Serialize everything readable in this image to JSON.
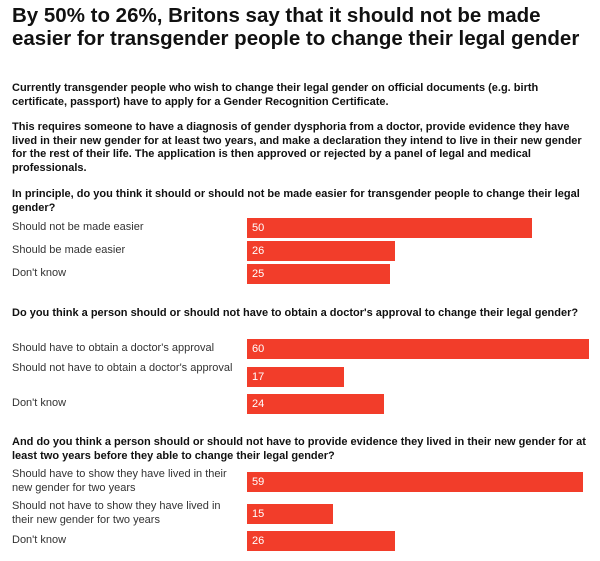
{
  "title": "By 50% to 26%, Britons say that it should not be made easier for transgender people to change their legal gender",
  "intro": [
    "Currently transgender people who wish to change their legal gender on official documents (e.g. birth certificate, passport) have to apply for a Gender Recognition Certificate.",
    "This requires someone to have a diagnosis of gender dysphoria from a doctor, provide evidence they have lived in their new gender for at least two years, and make a declaration they intend to live in their new gender for the rest of their life. The application is then approved or rejected by a panel of legal and medical professionals."
  ],
  "colors": {
    "bar": "#f23d2a",
    "text": "#111111",
    "label": "#333333"
  },
  "chart_data": [
    {
      "type": "bar",
      "orientation": "horizontal",
      "title": "In principle, do you think it should or should not be made easier for transgender people to change their legal gender?",
      "categories": [
        "Should not be made easier",
        "Should be made easier",
        "Don't know"
      ],
      "values": [
        50,
        26,
        25
      ]
    },
    {
      "type": "bar",
      "orientation": "horizontal",
      "title": "Do you think a person should or should not have to obtain a doctor's approval to change their legal gender?",
      "categories": [
        "Should have to obtain a doctor's approval",
        "Should not have to obtain a doctor's approval",
        "Don't know"
      ],
      "values": [
        60,
        17,
        24
      ]
    },
    {
      "type": "bar",
      "orientation": "horizontal",
      "title": "And do you think a person should or should not have to provide evidence they lived in their new gender for at least two years before they able to change their legal gender?",
      "categories": [
        "Should have to show they have lived in their new gender for two years",
        "Should not have to show they have lived in their new gender for two years",
        "Don't know"
      ],
      "values": [
        59,
        15,
        26
      ]
    }
  ]
}
